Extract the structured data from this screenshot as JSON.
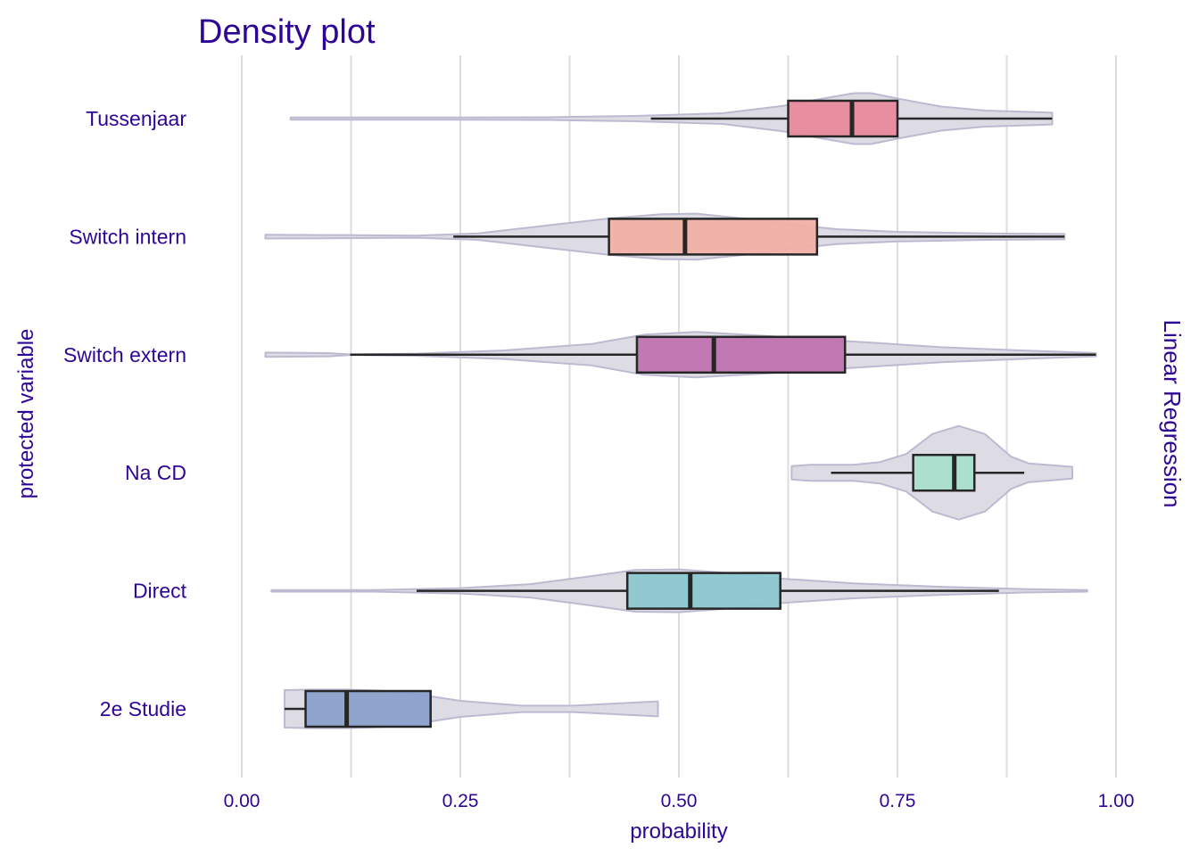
{
  "chart_data": {
    "type": "violin",
    "title": "Density plot",
    "xlabel": "probability",
    "ylabel": "protected variable",
    "facet_label": "Linear Regression",
    "xlim": [
      0,
      1
    ],
    "x_ticks": [
      0,
      0.25,
      0.5,
      0.75,
      1
    ],
    "x_tick_labels": [
      "0.00",
      "0.25",
      "0.50",
      "0.75",
      "1.00"
    ],
    "x_gridlines": [
      0,
      0.125,
      0.25,
      0.375,
      0.5,
      0.625,
      0.75,
      0.875,
      1
    ],
    "grid": true,
    "legend": "none",
    "categories": [
      "Tussenjaar",
      "Switch intern",
      "Switch extern",
      "Na CD",
      "Direct",
      "2e Studie"
    ],
    "colors": {
      "text": "#2e0594",
      "grid": "#dcdce2",
      "violin_fill": "#dddce4",
      "violin_stroke": "#bcbad0",
      "box_stroke": "#262626"
    },
    "series": [
      {
        "category": "Tussenjaar",
        "color": "#e8899d",
        "min": 0.056,
        "whisker_low": 0.468,
        "q1": 0.625,
        "median": 0.698,
        "q3": 0.75,
        "whisker_high": 0.927,
        "max": 0.927,
        "density": [
          [
            0.056,
            0.04
          ],
          [
            0.2,
            0.04
          ],
          [
            0.35,
            0.05
          ],
          [
            0.45,
            0.1
          ],
          [
            0.55,
            0.2
          ],
          [
            0.62,
            0.48
          ],
          [
            0.66,
            0.72
          ],
          [
            0.7,
            0.95
          ],
          [
            0.72,
            0.95
          ],
          [
            0.75,
            0.75
          ],
          [
            0.8,
            0.45
          ],
          [
            0.85,
            0.3
          ],
          [
            0.9,
            0.25
          ],
          [
            0.927,
            0.22
          ]
        ]
      },
      {
        "category": "Switch intern",
        "color": "#f0b0a7",
        "min": 0.027,
        "whisker_low": 0.242,
        "q1": 0.42,
        "median": 0.507,
        "q3": 0.658,
        "whisker_high": 0.941,
        "max": 0.941,
        "density": [
          [
            0.027,
            0.07
          ],
          [
            0.1,
            0.06
          ],
          [
            0.2,
            0.04
          ],
          [
            0.27,
            0.12
          ],
          [
            0.35,
            0.42
          ],
          [
            0.42,
            0.68
          ],
          [
            0.48,
            0.84
          ],
          [
            0.52,
            0.86
          ],
          [
            0.58,
            0.66
          ],
          [
            0.63,
            0.45
          ],
          [
            0.68,
            0.28
          ],
          [
            0.75,
            0.18
          ],
          [
            0.85,
            0.12
          ],
          [
            0.941,
            0.1
          ]
        ]
      },
      {
        "category": "Switch extern",
        "color": "#c073b0",
        "min": 0.027,
        "whisker_low": 0.124,
        "q1": 0.452,
        "median": 0.54,
        "q3": 0.69,
        "whisker_high": 0.977,
        "max": 0.977,
        "density": [
          [
            0.027,
            0.08
          ],
          [
            0.1,
            0.06
          ],
          [
            0.124,
            0.01
          ],
          [
            0.2,
            0.04
          ],
          [
            0.3,
            0.16
          ],
          [
            0.4,
            0.4
          ],
          [
            0.46,
            0.75
          ],
          [
            0.52,
            0.85
          ],
          [
            0.6,
            0.7
          ],
          [
            0.67,
            0.55
          ],
          [
            0.72,
            0.45
          ],
          [
            0.8,
            0.28
          ],
          [
            0.9,
            0.15
          ],
          [
            0.977,
            0.06
          ]
        ]
      },
      {
        "category": "Na CD",
        "color": "#aadece",
        "min": 0.629,
        "whisker_low": 0.674,
        "q1": 0.768,
        "median": 0.815,
        "q3": 0.838,
        "whisker_high": 0.895,
        "max": 0.95,
        "density": [
          [
            0.629,
            0.25
          ],
          [
            0.65,
            0.3
          ],
          [
            0.7,
            0.3
          ],
          [
            0.73,
            0.4
          ],
          [
            0.76,
            0.7
          ],
          [
            0.79,
            1.45
          ],
          [
            0.82,
            1.75
          ],
          [
            0.85,
            1.45
          ],
          [
            0.88,
            0.6
          ],
          [
            0.9,
            0.35
          ],
          [
            0.92,
            0.3
          ],
          [
            0.95,
            0.22
          ]
        ]
      },
      {
        "category": "Direct",
        "color": "#8bc7cf",
        "min": 0.034,
        "whisker_low": 0.2,
        "q1": 0.441,
        "median": 0.513,
        "q3": 0.616,
        "whisker_high": 0.866,
        "max": 0.967,
        "density": [
          [
            0.034,
            0.03
          ],
          [
            0.15,
            0.03
          ],
          [
            0.25,
            0.1
          ],
          [
            0.33,
            0.25
          ],
          [
            0.4,
            0.55
          ],
          [
            0.45,
            0.78
          ],
          [
            0.5,
            0.8
          ],
          [
            0.55,
            0.68
          ],
          [
            0.62,
            0.45
          ],
          [
            0.7,
            0.28
          ],
          [
            0.8,
            0.15
          ],
          [
            0.9,
            0.06
          ],
          [
            0.967,
            0.03
          ]
        ]
      },
      {
        "category": "2e Studie",
        "color": "#8aa1cc",
        "min": 0.049,
        "whisker_low": 0.049,
        "q1": 0.073,
        "median": 0.12,
        "q3": 0.216,
        "whisker_high": 0.216,
        "max": 0.476,
        "density": [
          [
            0.049,
            0.7
          ],
          [
            0.08,
            0.72
          ],
          [
            0.12,
            0.72
          ],
          [
            0.16,
            0.68
          ],
          [
            0.2,
            0.55
          ],
          [
            0.25,
            0.3
          ],
          [
            0.32,
            0.12
          ],
          [
            0.38,
            0.12
          ],
          [
            0.44,
            0.22
          ],
          [
            0.476,
            0.28
          ]
        ]
      }
    ]
  }
}
